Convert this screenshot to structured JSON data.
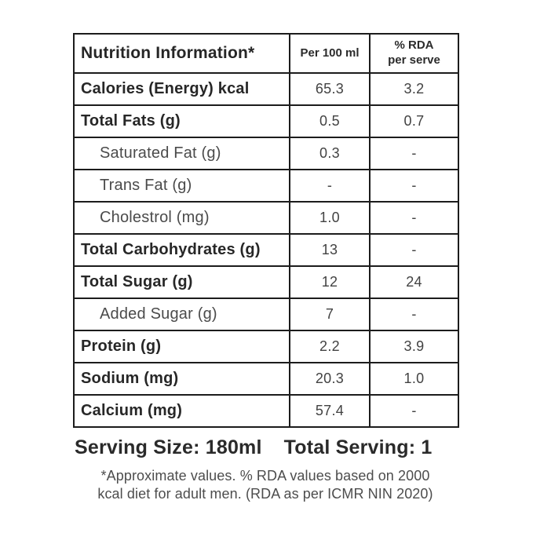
{
  "table": {
    "header": {
      "nutrition_info": "Nutrition Information*",
      "per_100_ml": "Per 100 ml",
      "rda_line1": "% RDA",
      "rda_line2": "per serve"
    },
    "rows": [
      {
        "label": "Calories (Energy) kcal",
        "per100": "65.3",
        "rda": "3.2",
        "bold": true,
        "indent": false
      },
      {
        "label": "Total Fats (g)",
        "per100": "0.5",
        "rda": "0.7",
        "bold": true,
        "indent": false
      },
      {
        "label": "Saturated Fat (g)",
        "per100": "0.3",
        "rda": "-",
        "bold": false,
        "indent": true
      },
      {
        "label": "Trans Fat (g)",
        "per100": "-",
        "rda": "-",
        "bold": false,
        "indent": true
      },
      {
        "label": "Cholestrol (mg)",
        "per100": "1.0",
        "rda": "-",
        "bold": false,
        "indent": true
      },
      {
        "label": "Total Carbohydrates (g)",
        "per100": "13",
        "rda": "-",
        "bold": true,
        "indent": false
      },
      {
        "label": "Total Sugar (g)",
        "per100": "12",
        "rda": "24",
        "bold": true,
        "indent": false
      },
      {
        "label": "Added Sugar (g)",
        "per100": "7",
        "rda": "-",
        "bold": false,
        "indent": true
      },
      {
        "label": "Protein (g)",
        "per100": "2.2",
        "rda": "3.9",
        "bold": true,
        "indent": false
      },
      {
        "label": "Sodium (mg)",
        "per100": "20.3",
        "rda": "1.0",
        "bold": true,
        "indent": false
      },
      {
        "label": "Calcium (mg)",
        "per100": "57.4",
        "rda": "-",
        "bold": true,
        "indent": false
      }
    ]
  },
  "footer": {
    "serving_size": "Serving Size: 180ml",
    "total_serving": "Total Serving: 1",
    "footnote_line1": "*Approximate values. % RDA values based on 2000",
    "footnote_line2": "kcal diet for adult men. (RDA as per ICMR NIN 2020)"
  },
  "colors": {
    "border": "#1c1c1c",
    "text_bold": "#272727",
    "text_regular": "#4b4b4b",
    "background": "#ffffff"
  }
}
